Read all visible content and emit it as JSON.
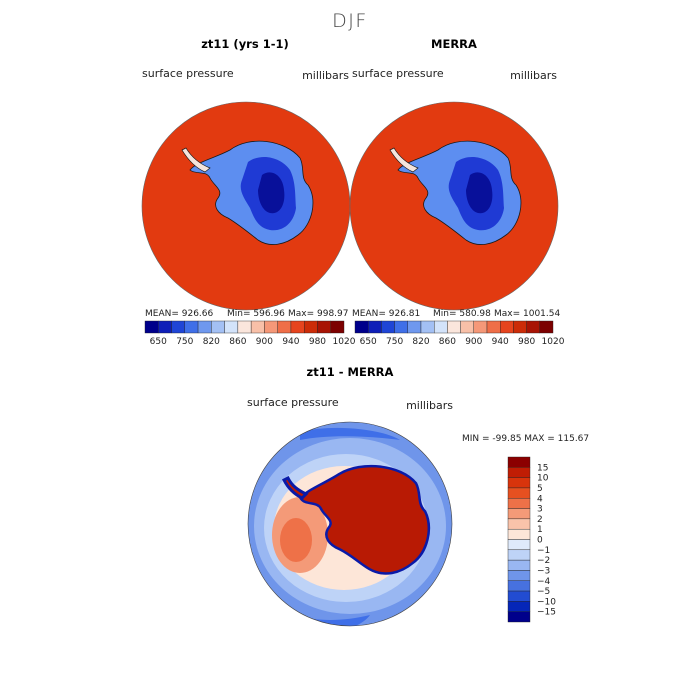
{
  "season_title": "DJF",
  "panels": {
    "model": {
      "title": "zt11 (yrs 1-1)",
      "var_label": "surface pressure",
      "units": "millibars",
      "stats": {
        "mean": "MEAN= 926.66",
        "min": "Min= 596.96",
        "max": "Max= 998.97"
      }
    },
    "obs": {
      "title": "MERRA",
      "var_label": "surface pressure",
      "units": "millibars",
      "stats": {
        "mean": "MEAN= 926.81",
        "min": "Min= 580.98",
        "max": "Max= 1001.54"
      }
    },
    "diff": {
      "title": "zt11 - MERRA",
      "var_label": "surface pressure",
      "units": "millibars",
      "stats": "MIN = -99.85  MAX = 115.67"
    }
  },
  "abs_colorbar": {
    "tick_labels": [
      "650",
      "750",
      "820",
      "860",
      "900",
      "940",
      "980",
      "1020"
    ],
    "colors": [
      "#00008b",
      "#0f1fb8",
      "#1f45d6",
      "#3f6fe8",
      "#6f98ee",
      "#a3c0f4",
      "#d3e3fa",
      "#fbe6dc",
      "#f8c0a8",
      "#f59878",
      "#ef6e48",
      "#e6441e",
      "#cc2c08",
      "#a81404",
      "#7c0000"
    ]
  },
  "diff_colorbar": {
    "tick_labels": [
      "15",
      "10",
      "5",
      "4",
      "3",
      "2",
      "1",
      "0",
      "−1",
      "−2",
      "−3",
      "−4",
      "−5",
      "−10",
      "−15"
    ],
    "colors": [
      "#8b0000",
      "#c01d04",
      "#d8340c",
      "#e65020",
      "#ee7148",
      "#f49a78",
      "#f9c3aa",
      "#fde6d8",
      "#dfeafb",
      "#bed3f7",
      "#99b7f2",
      "#6f95ea",
      "#4771df",
      "#224cd2",
      "#0526b8",
      "#00008b"
    ]
  }
}
